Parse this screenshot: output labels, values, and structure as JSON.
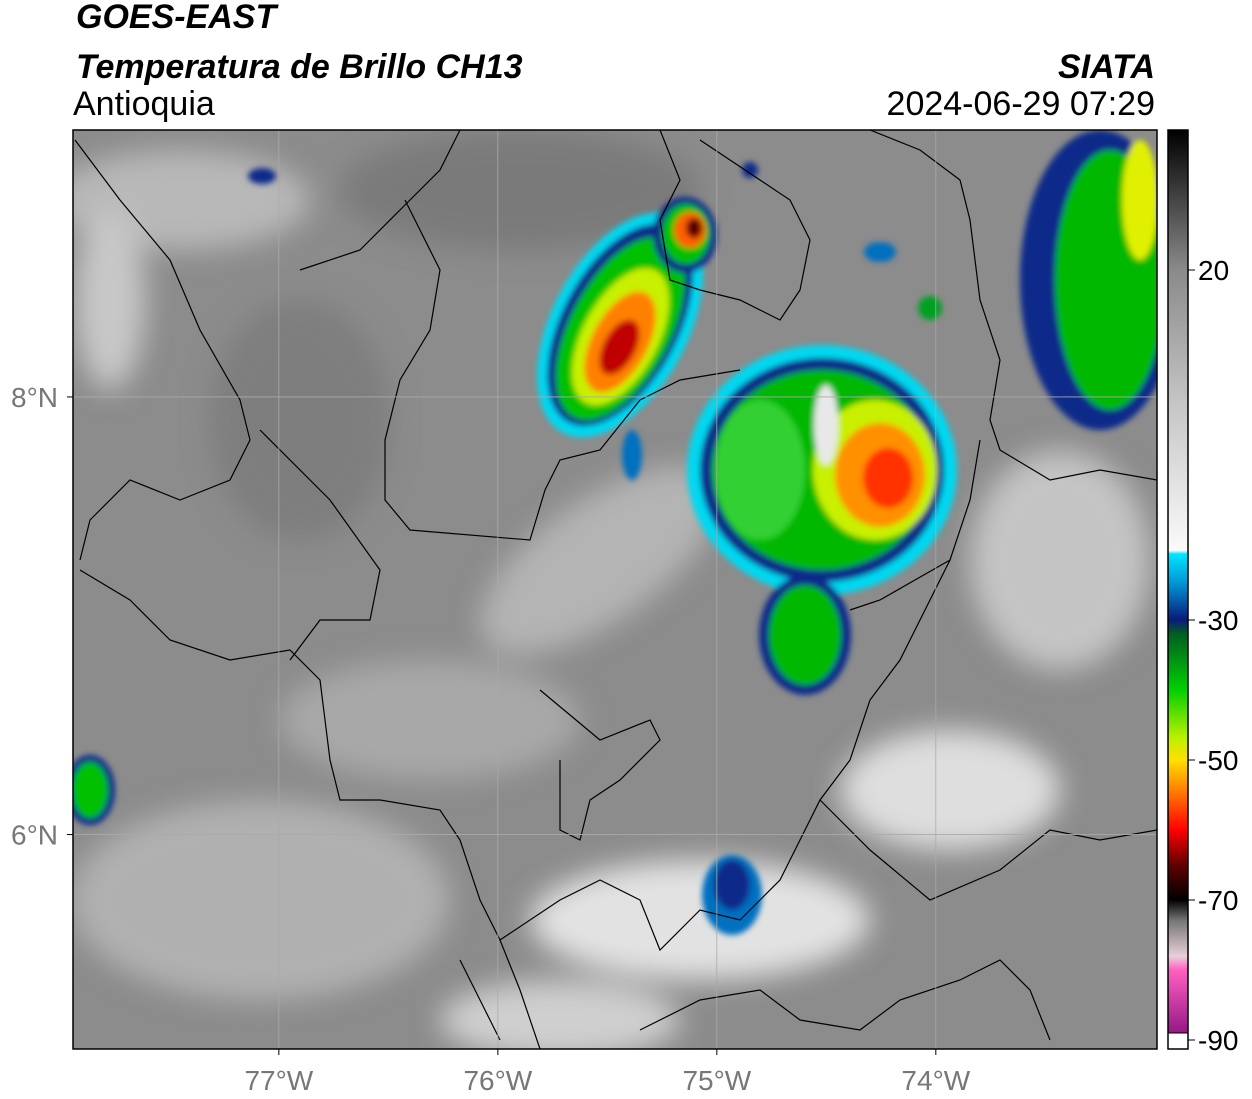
{
  "header": {
    "title": "GOES-EAST",
    "subtitle": "Temperatura de Brillo CH13",
    "region": "Antioquia",
    "source": "SIATA",
    "timestamp": "2024-06-29 07:29"
  },
  "map": {
    "xlim": [
      -77.94,
      -72.99
    ],
    "ylim": [
      5.02,
      9.22
    ],
    "xticks": [
      {
        "value": -77,
        "label": "77°W"
      },
      {
        "value": -76,
        "label": "76°W"
      },
      {
        "value": -75,
        "label": "75°W"
      },
      {
        "value": -74,
        "label": "74°W"
      }
    ],
    "yticks": [
      {
        "value": 6,
        "label": "6°N"
      },
      {
        "value": 8,
        "label": "8°N"
      }
    ],
    "grid": true
  },
  "colorbar": {
    "lim": [
      -90,
      40
    ],
    "ticks": [
      -90,
      -70,
      -50,
      -30,
      20
    ]
  }
}
